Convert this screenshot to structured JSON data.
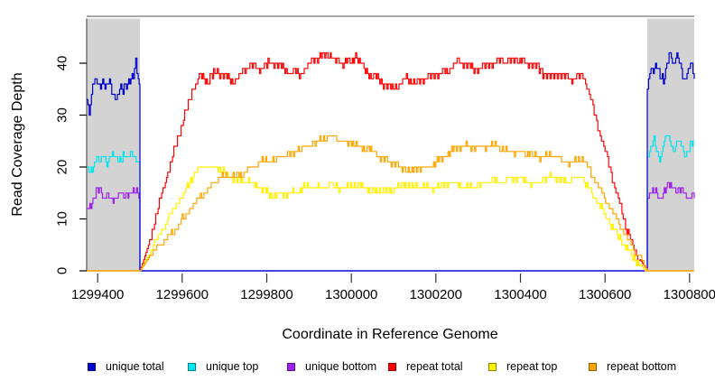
{
  "chart_data": {
    "type": "line",
    "title": "",
    "xlabel": "Coordinate in Reference Genome",
    "ylabel": "Read Coverage Depth",
    "xlim": [
      1299374,
      1300811
    ],
    "ylim": [
      0,
      49
    ],
    "x_ticks": [
      1299400,
      1299600,
      1299800,
      1300000,
      1300200,
      1300400,
      1300600,
      1300800
    ],
    "y_ticks": [
      0,
      10,
      20,
      30,
      40
    ],
    "grid": false,
    "shaded_regions": [
      {
        "x1": 1299374,
        "x2": 1299500,
        "color": "#D3D3D3"
      },
      {
        "x1": 1300700,
        "x2": 1300811,
        "color": "#D3D3D3"
      }
    ],
    "legend": {
      "position": "bottom",
      "entries": [
        {
          "label": "unique total",
          "color": "#0000CC"
        },
        {
          "label": "unique top",
          "color": "#00E5EE"
        },
        {
          "label": "unique bottom",
          "color": "#A020F0"
        },
        {
          "label": "repeat total",
          "color": "#FF0000"
        },
        {
          "label": "repeat top",
          "color": "#FFF000"
        },
        {
          "label": "repeat bottom",
          "color": "#FFA500"
        }
      ]
    },
    "series": [
      {
        "name": "unique top",
        "color": "#00E5EE",
        "points": [
          [
            1299374,
            20
          ],
          [
            1299382,
            19
          ],
          [
            1299390,
            21
          ],
          [
            1299398,
            22
          ],
          [
            1299406,
            21
          ],
          [
            1299414,
            23
          ],
          [
            1299422,
            21
          ],
          [
            1299430,
            22
          ],
          [
            1299440,
            22
          ],
          [
            1299450,
            21
          ],
          [
            1299460,
            22
          ],
          [
            1299470,
            21
          ],
          [
            1299480,
            23
          ],
          [
            1299488,
            22
          ],
          [
            1299494,
            21
          ],
          [
            1299500,
            20
          ],
          [
            1299500,
            0
          ],
          [
            1300700,
            0
          ],
          [
            1300700,
            22
          ],
          [
            1300708,
            24
          ],
          [
            1300716,
            25
          ],
          [
            1300724,
            23
          ],
          [
            1300732,
            22
          ],
          [
            1300740,
            25
          ],
          [
            1300748,
            26
          ],
          [
            1300756,
            24
          ],
          [
            1300764,
            23
          ],
          [
            1300772,
            25
          ],
          [
            1300780,
            24
          ],
          [
            1300788,
            22
          ],
          [
            1300796,
            23
          ],
          [
            1300804,
            25
          ],
          [
            1300811,
            24
          ]
        ]
      },
      {
        "name": "unique bottom",
        "color": "#A020F0",
        "points": [
          [
            1299374,
            12
          ],
          [
            1299384,
            13
          ],
          [
            1299394,
            15
          ],
          [
            1299404,
            16
          ],
          [
            1299414,
            14
          ],
          [
            1299424,
            15
          ],
          [
            1299434,
            13
          ],
          [
            1299444,
            14
          ],
          [
            1299454,
            15
          ],
          [
            1299464,
            14
          ],
          [
            1299474,
            15
          ],
          [
            1299484,
            16
          ],
          [
            1299492,
            15
          ],
          [
            1299500,
            14
          ],
          [
            1299500,
            0
          ],
          [
            1300700,
            0
          ],
          [
            1300700,
            14
          ],
          [
            1300710,
            15
          ],
          [
            1300720,
            16
          ],
          [
            1300730,
            14
          ],
          [
            1300740,
            15
          ],
          [
            1300750,
            17
          ],
          [
            1300760,
            16
          ],
          [
            1300770,
            15
          ],
          [
            1300780,
            16
          ],
          [
            1300790,
            15
          ],
          [
            1300800,
            14
          ],
          [
            1300811,
            15
          ]
        ]
      },
      {
        "name": "unique total",
        "color": "#0000CC",
        "points": [
          [
            1299374,
            33
          ],
          [
            1299380,
            31
          ],
          [
            1299388,
            36
          ],
          [
            1299396,
            37
          ],
          [
            1299404,
            36
          ],
          [
            1299412,
            37
          ],
          [
            1299420,
            35
          ],
          [
            1299428,
            36
          ],
          [
            1299436,
            34
          ],
          [
            1299444,
            33
          ],
          [
            1299452,
            35
          ],
          [
            1299460,
            34
          ],
          [
            1299468,
            36
          ],
          [
            1299476,
            37
          ],
          [
            1299484,
            38
          ],
          [
            1299490,
            40
          ],
          [
            1299496,
            37
          ],
          [
            1299500,
            34
          ],
          [
            1299500,
            0
          ],
          [
            1300700,
            0
          ],
          [
            1300700,
            35
          ],
          [
            1300706,
            38
          ],
          [
            1300714,
            39
          ],
          [
            1300722,
            40
          ],
          [
            1300730,
            37
          ],
          [
            1300738,
            36
          ],
          [
            1300746,
            40
          ],
          [
            1300754,
            42
          ],
          [
            1300762,
            39
          ],
          [
            1300770,
            41
          ],
          [
            1300778,
            40
          ],
          [
            1300786,
            37
          ],
          [
            1300794,
            38
          ],
          [
            1300802,
            40
          ],
          [
            1300811,
            38
          ]
        ]
      },
      {
        "name": "repeat total",
        "color": "#FF0000",
        "points": [
          [
            1299374,
            0
          ],
          [
            1299500,
            0
          ],
          [
            1299520,
            5
          ],
          [
            1299540,
            11
          ],
          [
            1299560,
            17
          ],
          [
            1299580,
            23
          ],
          [
            1299600,
            29
          ],
          [
            1299620,
            34
          ],
          [
            1299640,
            37.5
          ],
          [
            1299660,
            36.5
          ],
          [
            1299680,
            38
          ],
          [
            1299700,
            38
          ],
          [
            1299720,
            36.5
          ],
          [
            1299740,
            38.5
          ],
          [
            1299760,
            39.5
          ],
          [
            1299780,
            38.5
          ],
          [
            1299800,
            39.5
          ],
          [
            1299820,
            40.5
          ],
          [
            1299840,
            39
          ],
          [
            1299860,
            38.5
          ],
          [
            1299880,
            38
          ],
          [
            1299900,
            39.5
          ],
          [
            1299920,
            41
          ],
          [
            1299940,
            41.5
          ],
          [
            1299950,
            42
          ],
          [
            1299960,
            41
          ],
          [
            1299980,
            40.5
          ],
          [
            1300000,
            40
          ],
          [
            1300010,
            41.5
          ],
          [
            1300030,
            38.5
          ],
          [
            1300050,
            37.5
          ],
          [
            1300070,
            37
          ],
          [
            1300090,
            35.5
          ],
          [
            1300110,
            35.5
          ],
          [
            1300130,
            37
          ],
          [
            1300150,
            35.5
          ],
          [
            1300170,
            37
          ],
          [
            1300190,
            38
          ],
          [
            1300210,
            38.5
          ],
          [
            1300230,
            38.5
          ],
          [
            1300250,
            40
          ],
          [
            1300270,
            39.5
          ],
          [
            1300290,
            39
          ],
          [
            1300310,
            39.5
          ],
          [
            1300330,
            40
          ],
          [
            1300350,
            40.5
          ],
          [
            1300370,
            40
          ],
          [
            1300390,
            40.5
          ],
          [
            1300410,
            40
          ],
          [
            1300430,
            40
          ],
          [
            1300450,
            38.5
          ],
          [
            1300470,
            37.5
          ],
          [
            1300490,
            37.5
          ],
          [
            1300510,
            37
          ],
          [
            1300530,
            37
          ],
          [
            1300545,
            38.5
          ],
          [
            1300560,
            35
          ],
          [
            1300580,
            29
          ],
          [
            1300600,
            23
          ],
          [
            1300620,
            17
          ],
          [
            1300640,
            11
          ],
          [
            1300660,
            6
          ],
          [
            1300680,
            2.5
          ],
          [
            1300700,
            0
          ],
          [
            1300811,
            0
          ]
        ]
      },
      {
        "name": "repeat top",
        "color": "#FFF000",
        "points": [
          [
            1299374,
            0
          ],
          [
            1299500,
            0
          ],
          [
            1299520,
            3
          ],
          [
            1299540,
            6
          ],
          [
            1299560,
            9
          ],
          [
            1299580,
            12
          ],
          [
            1299600,
            14.5
          ],
          [
            1299620,
            17.5
          ],
          [
            1299640,
            19.5
          ],
          [
            1299655,
            20
          ],
          [
            1299670,
            19.5
          ],
          [
            1299685,
            20
          ],
          [
            1299700,
            19
          ],
          [
            1299720,
            18
          ],
          [
            1299740,
            17.5
          ],
          [
            1299760,
            17
          ],
          [
            1299780,
            16
          ],
          [
            1299800,
            15
          ],
          [
            1299815,
            14.5
          ],
          [
            1299830,
            15
          ],
          [
            1299850,
            15
          ],
          [
            1299870,
            15
          ],
          [
            1299890,
            16
          ],
          [
            1299910,
            16
          ],
          [
            1299930,
            16
          ],
          [
            1299950,
            17
          ],
          [
            1299970,
            16
          ],
          [
            1299990,
            16
          ],
          [
            1300010,
            16.5
          ],
          [
            1300030,
            16
          ],
          [
            1300050,
            15.5
          ],
          [
            1300070,
            16
          ],
          [
            1300090,
            15.5
          ],
          [
            1300110,
            16
          ],
          [
            1300130,
            16.5
          ],
          [
            1300150,
            16
          ],
          [
            1300170,
            16.5
          ],
          [
            1300190,
            16
          ],
          [
            1300210,
            16.5
          ],
          [
            1300230,
            17
          ],
          [
            1300250,
            16.5
          ],
          [
            1300270,
            16
          ],
          [
            1300290,
            16.5
          ],
          [
            1300310,
            17
          ],
          [
            1300330,
            17.5
          ],
          [
            1300350,
            17
          ],
          [
            1300370,
            17.5
          ],
          [
            1300390,
            18
          ],
          [
            1300410,
            17.5
          ],
          [
            1300430,
            17
          ],
          [
            1300450,
            17.5
          ],
          [
            1300470,
            18
          ],
          [
            1300490,
            17.5
          ],
          [
            1300510,
            17
          ],
          [
            1300530,
            18
          ],
          [
            1300545,
            18.5
          ],
          [
            1300560,
            16
          ],
          [
            1300580,
            13.5
          ],
          [
            1300600,
            10.5
          ],
          [
            1300620,
            8
          ],
          [
            1300640,
            5.5
          ],
          [
            1300660,
            3.5
          ],
          [
            1300680,
            1.5
          ],
          [
            1300695,
            0
          ],
          [
            1300811,
            0
          ]
        ]
      },
      {
        "name": "repeat bottom",
        "color": "#FFA500",
        "points": [
          [
            1299374,
            0
          ],
          [
            1299500,
            0
          ],
          [
            1299520,
            2.5
          ],
          [
            1299540,
            4.5
          ],
          [
            1299560,
            6
          ],
          [
            1299580,
            8
          ],
          [
            1299600,
            10
          ],
          [
            1299620,
            12
          ],
          [
            1299640,
            14
          ],
          [
            1299660,
            15.5
          ],
          [
            1299680,
            17.5
          ],
          [
            1299700,
            18.5
          ],
          [
            1299720,
            18.5
          ],
          [
            1299740,
            18.5
          ],
          [
            1299760,
            19.5
          ],
          [
            1299780,
            20.5
          ],
          [
            1299800,
            21.5
          ],
          [
            1299820,
            21.5
          ],
          [
            1299840,
            22.5
          ],
          [
            1299860,
            22.5
          ],
          [
            1299880,
            23.5
          ],
          [
            1299900,
            24
          ],
          [
            1299920,
            25
          ],
          [
            1299940,
            26
          ],
          [
            1299960,
            26
          ],
          [
            1299980,
            24.5
          ],
          [
            1300000,
            24.5
          ],
          [
            1300020,
            23.5
          ],
          [
            1300040,
            23.5
          ],
          [
            1300060,
            22.5
          ],
          [
            1300080,
            21.5
          ],
          [
            1300100,
            20.5
          ],
          [
            1300120,
            19.5
          ],
          [
            1300140,
            19
          ],
          [
            1300160,
            20
          ],
          [
            1300180,
            20
          ],
          [
            1300200,
            21
          ],
          [
            1300220,
            22
          ],
          [
            1300240,
            23
          ],
          [
            1300260,
            24
          ],
          [
            1300280,
            24
          ],
          [
            1300300,
            24
          ],
          [
            1300320,
            24
          ],
          [
            1300340,
            24
          ],
          [
            1300360,
            23
          ],
          [
            1300380,
            23
          ],
          [
            1300400,
            23
          ],
          [
            1300420,
            23
          ],
          [
            1300440,
            22
          ],
          [
            1300460,
            22
          ],
          [
            1300480,
            22
          ],
          [
            1300500,
            21
          ],
          [
            1300520,
            21
          ],
          [
            1300540,
            22
          ],
          [
            1300555,
            21
          ],
          [
            1300570,
            18
          ],
          [
            1300590,
            15
          ],
          [
            1300610,
            12.5
          ],
          [
            1300630,
            9.5
          ],
          [
            1300650,
            7
          ],
          [
            1300670,
            4
          ],
          [
            1300690,
            1.5
          ],
          [
            1300700,
            0
          ],
          [
            1300811,
            0
          ]
        ]
      }
    ]
  }
}
